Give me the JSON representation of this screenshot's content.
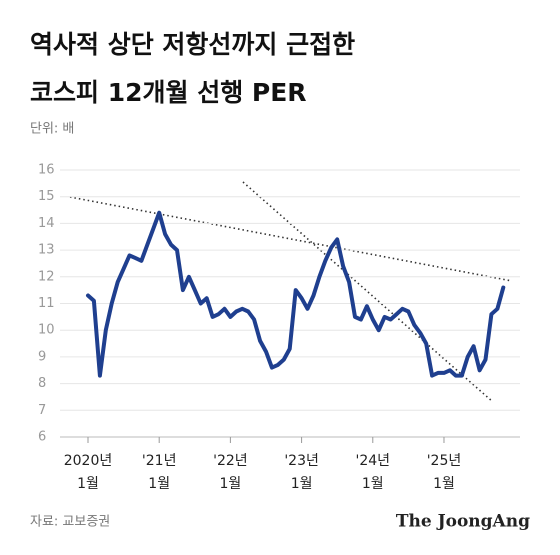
{
  "chart_data": {
    "type": "line",
    "title_lines": [
      "역사적 상단 저항선까지 근접한",
      "코스피 12개월 선행 PER"
    ],
    "unit_label": "단위: 배",
    "source": "자료: 교보증권",
    "brand": "The JoongAng",
    "categories": [
      "2020년 1월",
      null,
      null,
      null,
      null,
      null,
      null,
      null,
      null,
      null,
      null,
      null,
      "'21년 1월",
      null,
      null,
      null,
      null,
      null,
      null,
      null,
      null,
      null,
      null,
      null,
      "'22년 1월",
      null,
      null,
      null,
      null,
      null,
      null,
      null,
      null,
      null,
      null,
      null,
      "'23년 1월",
      null,
      null,
      null,
      null,
      null,
      null,
      null,
      null,
      null,
      null,
      null,
      "'24년 1월",
      null,
      null,
      null,
      null,
      null,
      null,
      null,
      null,
      null,
      null,
      null,
      "'25년 1월",
      null,
      null,
      null,
      null,
      null,
      null,
      null,
      null,
      null,
      null
    ],
    "series": [
      {
        "name": "코스피 12개월 선행 PER",
        "color": "#1f3f8f",
        "values": [
          11.3,
          11.1,
          8.3,
          10.0,
          11.0,
          11.8,
          12.3,
          12.8,
          12.7,
          12.6,
          13.2,
          13.8,
          14.4,
          13.6,
          13.2,
          13.0,
          11.5,
          12.0,
          11.5,
          11.0,
          11.2,
          10.5,
          10.6,
          10.8,
          10.5,
          10.7,
          10.8,
          10.7,
          10.4,
          9.6,
          9.2,
          8.6,
          8.7,
          8.9,
          9.3,
          11.5,
          11.2,
          10.8,
          11.3,
          12.0,
          12.6,
          13.1,
          13.4,
          12.4,
          11.8,
          10.5,
          10.4,
          10.9,
          10.4,
          10.0,
          10.5,
          10.4,
          10.6,
          10.8,
          10.7,
          10.2,
          9.9,
          9.5,
          8.3,
          8.4,
          8.4,
          8.5,
          8.3,
          8.3,
          9.0,
          9.4,
          8.5,
          8.9,
          10.6,
          10.8,
          11.6
        ]
      }
    ],
    "ylim": [
      6,
      16
    ],
    "yticks": [
      6,
      7,
      8,
      9,
      10,
      11,
      12,
      13,
      14,
      15,
      16
    ],
    "grid": true
  }
}
